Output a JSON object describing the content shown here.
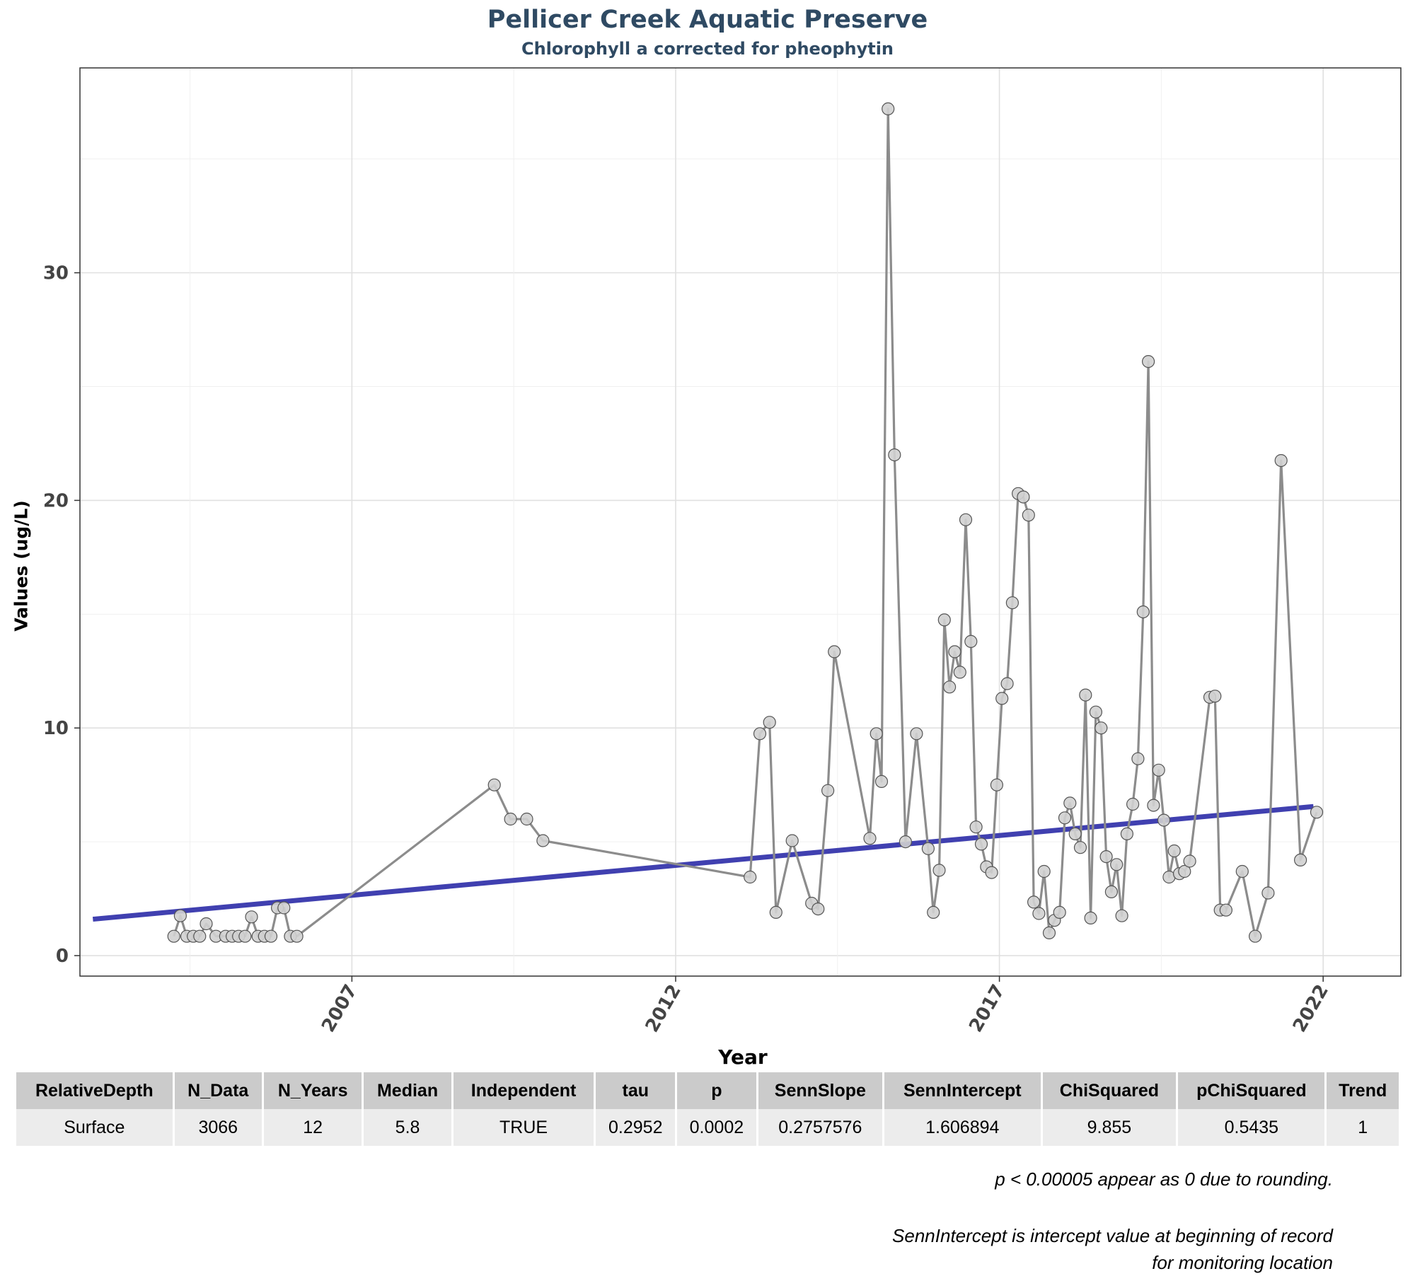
{
  "chart_data": {
    "type": "line",
    "title": "Pellicer Creek Aquatic Preserve",
    "subtitle": "Chlorophyll a corrected for pheophytin",
    "xlabel": "Year",
    "ylabel": "Values (ug/L)",
    "xlim": [
      2002.8,
      2023.2
    ],
    "ylim": [
      -0.9,
      39
    ],
    "x_ticks": [
      2007,
      2012,
      2017,
      2022
    ],
    "y_ticks": [
      0,
      10,
      20,
      30
    ],
    "grid": true,
    "series": [
      {
        "color": "#8c8c8c",
        "marker_fill": "#d0d0d0",
        "points": [
          [
            2004.25,
            0.85
          ],
          [
            2004.35,
            1.75
          ],
          [
            2004.45,
            0.85
          ],
          [
            2004.55,
            0.85
          ],
          [
            2004.65,
            0.85
          ],
          [
            2004.75,
            1.4
          ],
          [
            2004.9,
            0.85
          ],
          [
            2005.05,
            0.85
          ],
          [
            2005.15,
            0.85
          ],
          [
            2005.25,
            0.85
          ],
          [
            2005.35,
            0.85
          ],
          [
            2005.45,
            1.7
          ],
          [
            2005.55,
            0.85
          ],
          [
            2005.65,
            0.85
          ],
          [
            2005.75,
            0.85
          ],
          [
            2005.85,
            2.1
          ],
          [
            2005.95,
            2.1
          ],
          [
            2006.05,
            0.85
          ],
          [
            2006.15,
            0.85
          ],
          [
            2009.2,
            7.5
          ],
          [
            2009.45,
            6.0
          ],
          [
            2009.7,
            6.0
          ],
          [
            2009.95,
            5.05
          ],
          [
            2013.15,
            3.45
          ],
          [
            2013.3,
            9.75
          ],
          [
            2013.45,
            10.25
          ],
          [
            2013.55,
            1.9
          ],
          [
            2013.8,
            5.05
          ],
          [
            2014.1,
            2.3
          ],
          [
            2014.2,
            2.05
          ],
          [
            2014.35,
            7.25
          ],
          [
            2014.45,
            13.35
          ],
          [
            2015.0,
            5.15
          ],
          [
            2015.1,
            9.75
          ],
          [
            2015.18,
            7.65
          ],
          [
            2015.28,
            37.2
          ],
          [
            2015.38,
            22.0
          ],
          [
            2015.55,
            5.0
          ],
          [
            2015.72,
            9.75
          ],
          [
            2015.9,
            4.7
          ],
          [
            2015.98,
            1.9
          ],
          [
            2016.07,
            3.75
          ],
          [
            2016.15,
            14.75
          ],
          [
            2016.23,
            11.8
          ],
          [
            2016.31,
            13.35
          ],
          [
            2016.39,
            12.45
          ],
          [
            2016.48,
            19.15
          ],
          [
            2016.56,
            13.8
          ],
          [
            2016.64,
            5.65
          ],
          [
            2016.72,
            4.9
          ],
          [
            2016.8,
            3.9
          ],
          [
            2016.88,
            3.65
          ],
          [
            2016.96,
            7.5
          ],
          [
            2017.04,
            11.3
          ],
          [
            2017.12,
            11.95
          ],
          [
            2017.2,
            15.5
          ],
          [
            2017.29,
            20.3
          ],
          [
            2017.37,
            20.15
          ],
          [
            2017.45,
            19.35
          ],
          [
            2017.53,
            2.35
          ],
          [
            2017.61,
            1.85
          ],
          [
            2017.69,
            3.7
          ],
          [
            2017.77,
            1.0
          ],
          [
            2017.85,
            1.55
          ],
          [
            2017.93,
            1.9
          ],
          [
            2018.01,
            6.05
          ],
          [
            2018.09,
            6.7
          ],
          [
            2018.17,
            5.35
          ],
          [
            2018.25,
            4.75
          ],
          [
            2018.33,
            11.45
          ],
          [
            2018.41,
            1.65
          ],
          [
            2018.49,
            10.7
          ],
          [
            2018.57,
            10.0
          ],
          [
            2018.65,
            4.35
          ],
          [
            2018.73,
            2.8
          ],
          [
            2018.81,
            4.0
          ],
          [
            2018.89,
            1.75
          ],
          [
            2018.97,
            5.35
          ],
          [
            2019.06,
            6.65
          ],
          [
            2019.14,
            8.65
          ],
          [
            2019.22,
            15.1
          ],
          [
            2019.3,
            26.1
          ],
          [
            2019.38,
            6.6
          ],
          [
            2019.46,
            8.15
          ],
          [
            2019.54,
            5.95
          ],
          [
            2019.62,
            3.45
          ],
          [
            2019.7,
            4.6
          ],
          [
            2019.78,
            3.6
          ],
          [
            2019.86,
            3.7
          ],
          [
            2019.94,
            4.15
          ],
          [
            2020.25,
            11.35
          ],
          [
            2020.33,
            11.4
          ],
          [
            2020.41,
            2.0
          ],
          [
            2020.5,
            2.0
          ],
          [
            2020.75,
            3.7
          ],
          [
            2020.95,
            0.85
          ],
          [
            2021.15,
            2.75
          ],
          [
            2021.35,
            21.75
          ],
          [
            2021.65,
            4.2
          ],
          [
            2021.9,
            6.3
          ]
        ]
      }
    ],
    "trend_line": {
      "color": "#4040b0",
      "start": [
        2003.0,
        1.6
      ],
      "end": [
        2021.85,
        6.55
      ]
    }
  },
  "table": {
    "headers": [
      "RelativeDepth",
      "N_Data",
      "N_Years",
      "Median",
      "Independent",
      "tau",
      "p",
      "SennSlope",
      "SennIntercept",
      "ChiSquared",
      "pChiSquared",
      "Trend"
    ],
    "rows": [
      [
        "Surface",
        "3066",
        "12",
        "5.8",
        "TRUE",
        "0.2952",
        "0.0002",
        "0.2757576",
        "1.606894",
        "9.855",
        "0.5435",
        "1"
      ]
    ]
  },
  "notes": {
    "note1": "p < 0.00005 appear as 0 due to rounding.",
    "note2": "SennIntercept is intercept value at beginning of record for monitoring location"
  }
}
